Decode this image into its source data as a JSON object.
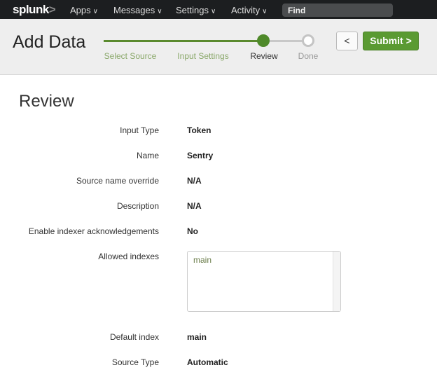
{
  "topbar": {
    "logo": "splunk",
    "logo_mark": ">",
    "nav": [
      "Apps",
      "Messages",
      "Settings",
      "Activity"
    ],
    "find_placeholder": "Find"
  },
  "header": {
    "title": "Add Data",
    "steps": [
      {
        "label": "Select Source",
        "state": "complete"
      },
      {
        "label": "Input Settings",
        "state": "complete"
      },
      {
        "label": "Review",
        "state": "current"
      },
      {
        "label": "Done",
        "state": "pending"
      }
    ],
    "back_label": "<",
    "submit_label": "Submit",
    "submit_chevron": ">",
    "accent": "#5a9a32"
  },
  "review": {
    "heading": "Review",
    "rows": [
      {
        "label": "Input Type",
        "value": "Token"
      },
      {
        "label": "Name",
        "value": "Sentry"
      },
      {
        "label": "Source name override",
        "value": "N/A"
      },
      {
        "label": "Description",
        "value": "N/A"
      },
      {
        "label": "Enable indexer acknowledgements",
        "value": "No"
      },
      {
        "label": "Allowed indexes",
        "items": [
          "main"
        ]
      },
      {
        "label": "Default index",
        "value": "main"
      },
      {
        "label": "Source Type",
        "value": "Automatic"
      }
    ]
  }
}
